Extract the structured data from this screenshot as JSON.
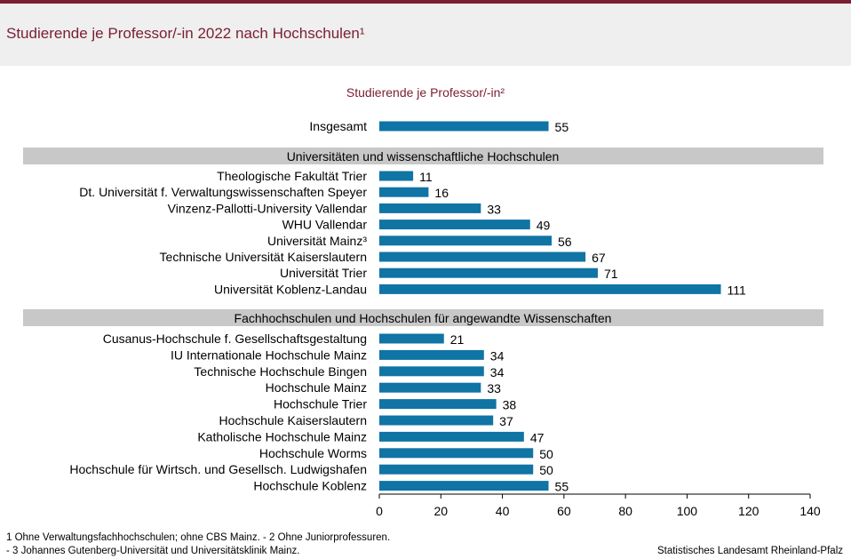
{
  "page": {
    "title": "Studierende je Professor/-in 2022 nach Hochschulen¹",
    "footnote_line1": "1 Ohne Verwaltungsfachhochschulen;  ohne CBS Mainz. - 2 Ohne Juniorprofessuren.",
    "footnote_line2": "- 3 Johannes  Gutenberg-Universität  und Universitätsklinik Mainz.",
    "source": "Statistisches Landesamt Rheinland-Pfalz"
  },
  "chart_data": {
    "type": "bar",
    "orientation": "horizontal",
    "subtitle": "Studierende je Professor/-in²",
    "bar_color": "#1074a4",
    "group_band_color": "#c8c8c8",
    "xlim": [
      0,
      140
    ],
    "xticks": [
      0,
      20,
      40,
      60,
      80,
      100,
      120,
      140
    ],
    "total": {
      "label": "Insgesamt",
      "value": 55
    },
    "groups": [
      {
        "name": "Universitäten  und  wissenschaftliche  Hochschulen",
        "categories": [
          "Theologische Fakultät Trier",
          "Dt. Universität f. Verwaltungswissenschaften Speyer",
          "Vinzenz-Pallotti-University Vallendar",
          "WHU Vallendar",
          "Universität Mainz³",
          "Technische Universität Kaiserslautern",
          "Universität Trier",
          "Universität Koblenz-Landau"
        ],
        "values": [
          11,
          16,
          33,
          49,
          56,
          67,
          71,
          111
        ]
      },
      {
        "name": "Fachhochschulen  und  Hochschulen  für  angewandte  Wissenschaften",
        "categories": [
          "Cusanus-Hochschule f. Gesellschaftsgestaltung",
          "IU Internationale Hochschule Mainz",
          "Technische Hochschule Bingen",
          "Hochschule Mainz",
          "Hochschule Trier",
          "Hochschule Kaiserslautern",
          "Katholische Hochschule Mainz",
          "Hochschule Worms",
          "Hochschule für Wirtsch. und Gesellsch. Ludwigshafen",
          "Hochschule Koblenz"
        ],
        "values": [
          21,
          34,
          34,
          33,
          38,
          37,
          47,
          50,
          50,
          55
        ]
      }
    ]
  }
}
